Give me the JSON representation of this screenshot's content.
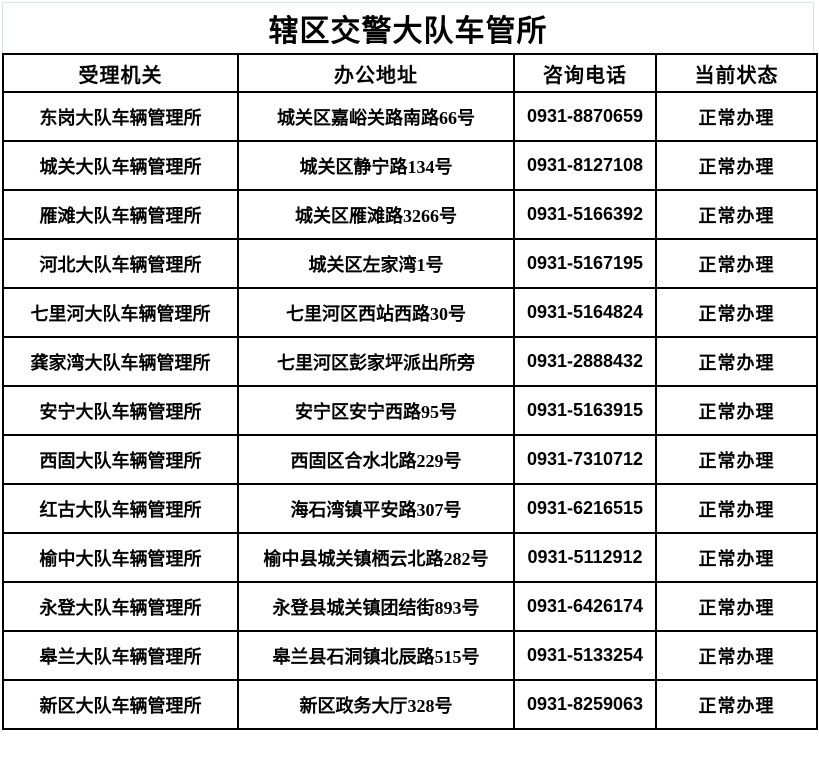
{
  "title": "辖区交警大队车管所",
  "table": {
    "headers": [
      "受理机关",
      "办公地址",
      "咨询电话",
      "当前状态"
    ],
    "rows": [
      {
        "agency": "东岗大队车辆管理所",
        "address": "城关区嘉峪关路南路66号",
        "phone": "0931-8870659",
        "status": "正常办理"
      },
      {
        "agency": "城关大队车辆管理所",
        "address": "城关区静宁路134号",
        "phone": "0931-8127108",
        "status": "正常办理"
      },
      {
        "agency": "雁滩大队车辆管理所",
        "address": "城关区雁滩路3266号",
        "phone": "0931-5166392",
        "status": "正常办理"
      },
      {
        "agency": "河北大队车辆管理所",
        "address": "城关区左家湾1号",
        "phone": "0931-5167195",
        "status": "正常办理"
      },
      {
        "agency": "七里河大队车辆管理所",
        "address": "七里河区西站西路30号",
        "phone": "0931-5164824",
        "status": "正常办理"
      },
      {
        "agency": "龚家湾大队车辆管理所",
        "address": "七里河区彭家坪派出所旁",
        "phone": "0931-2888432",
        "status": "正常办理"
      },
      {
        "agency": "安宁大队车辆管理所",
        "address": "安宁区安宁西路95号",
        "phone": "0931-5163915",
        "status": "正常办理"
      },
      {
        "agency": "西固大队车辆管理所",
        "address": "西固区合水北路229号",
        "phone": "0931-7310712",
        "status": "正常办理"
      },
      {
        "agency": "红古大队车辆管理所",
        "address": "海石湾镇平安路307号",
        "phone": "0931-6216515",
        "status": "正常办理"
      },
      {
        "agency": "榆中大队车辆管理所",
        "address": "榆中县城关镇栖云北路282号",
        "phone": "0931-5112912",
        "status": "正常办理"
      },
      {
        "agency": "永登大队车辆管理所",
        "address": "永登县城关镇团结街893号",
        "phone": "0931-6426174",
        "status": "正常办理"
      },
      {
        "agency": "皋兰大队车辆管理所",
        "address": "皋兰县石洞镇北辰路515号",
        "phone": "0931-5133254",
        "status": "正常办理"
      },
      {
        "agency": "新区大队车辆管理所",
        "address": "新区政务大厅328号",
        "phone": "0931-8259063",
        "status": "正常办理"
      }
    ]
  },
  "colors": {
    "table_border": "#000000",
    "title_border": "#dbe0e6",
    "text": "#000000",
    "background": "#ffffff"
  }
}
